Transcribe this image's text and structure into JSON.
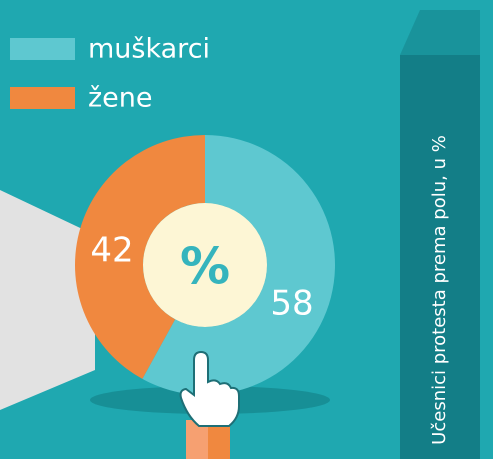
{
  "chart_data": {
    "type": "pie",
    "title": "Učesnici protesta prema polu, u %",
    "center_label": "%",
    "categories": [
      "muškarci",
      "žene"
    ],
    "values": [
      58,
      42
    ],
    "colors": [
      "#5ec8d0",
      "#f0883f"
    ]
  }
}
